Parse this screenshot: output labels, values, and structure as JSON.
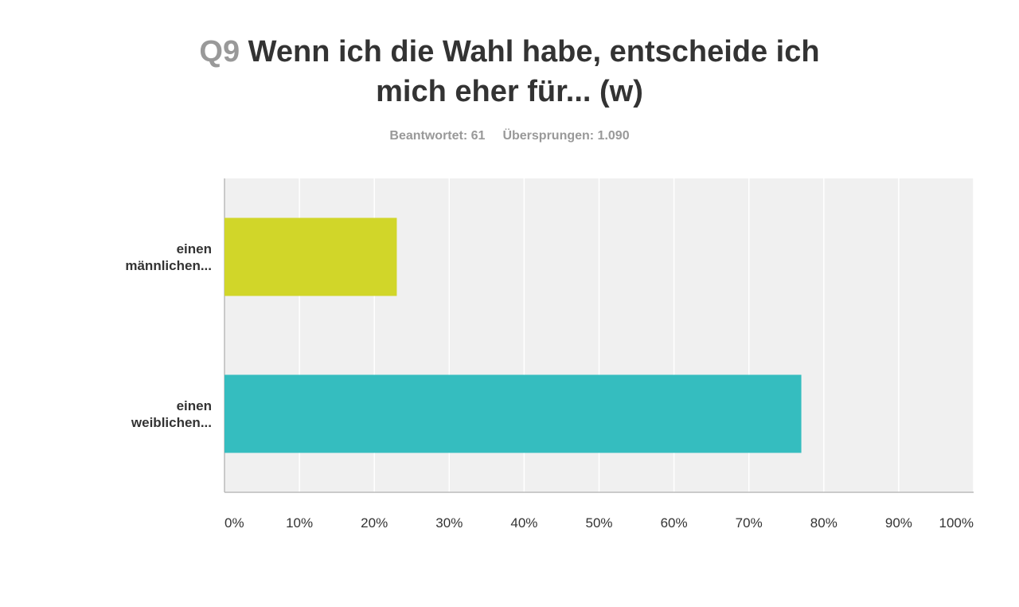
{
  "header": {
    "question_number": "Q9",
    "title_line1": "Wenn ich die Wahl habe, entscheide ich",
    "title_line2": "mich eher für... (w)",
    "answered": "Beantwortet: 61",
    "skipped": "Übersprungen: 1.090"
  },
  "chart_data": {
    "type": "bar",
    "orientation": "horizontal",
    "categories": [
      [
        "einen",
        "männlichen..."
      ],
      [
        "einen",
        "weiblichen..."
      ]
    ],
    "values": [
      23,
      77
    ],
    "colors": [
      "#D1D629",
      "#35BDBF"
    ],
    "xlim": [
      0,
      100
    ],
    "x_ticks": [
      "0%",
      "10%",
      "20%",
      "30%",
      "40%",
      "50%",
      "60%",
      "70%",
      "80%",
      "90%",
      "100%"
    ],
    "grid": true,
    "plot_background": "#F0F0F0"
  }
}
